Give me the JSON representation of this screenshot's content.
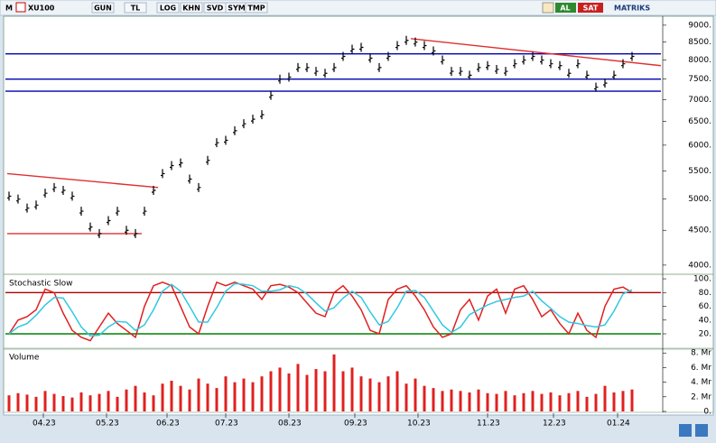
{
  "toolbar": {
    "symbol_prefix": "M",
    "symbol": "XU100",
    "buttons": [
      "GUN",
      "TL",
      "LOG",
      "KHN",
      "SVD",
      "SYM",
      "TMP"
    ],
    "buy": "AL",
    "sell": "SAT",
    "brand": "MATRIKS"
  },
  "chart_data": [
    {
      "type": "stock",
      "color": "#000000",
      "log": true,
      "xlim": [
        -0.4,
        72.2
      ],
      "ylim": [
        3890,
        9220
      ],
      "yticks": [
        {
          "value": 9000,
          "label": "9000."
        },
        {
          "value": 8500,
          "label": "8500."
        },
        {
          "value": 8000,
          "label": "8000."
        },
        {
          "value": 7500,
          "label": "7500."
        },
        {
          "value": 7000,
          "label": "7000."
        },
        {
          "value": 6500,
          "label": "6500."
        },
        {
          "value": 6000,
          "label": "6000."
        },
        {
          "value": 5500,
          "label": "5500."
        },
        {
          "value": 5000,
          "label": "5000."
        },
        {
          "value": 4500,
          "label": "4500."
        },
        {
          "value": 4000,
          "label": "4000."
        }
      ],
      "values": [
        5050,
        5000,
        4850,
        4900,
        5100,
        5200,
        5150,
        5050,
        4800,
        4550,
        4450,
        4650,
        4800,
        4500,
        4450,
        4800,
        5150,
        5450,
        5600,
        5650,
        5350,
        5200,
        5700,
        6050,
        6100,
        6300,
        6450,
        6550,
        6650,
        7100,
        7500,
        7550,
        7800,
        7800,
        7700,
        7650,
        7800,
        8100,
        8300,
        8350,
        8050,
        7800,
        8100,
        8400,
        8550,
        8500,
        8400,
        8250,
        8000,
        7700,
        7700,
        7600,
        7800,
        7850,
        7750,
        7700,
        7900,
        8000,
        8100,
        8000,
        7900,
        7850,
        7650,
        7900,
        7600,
        7300,
        7400,
        7600,
        7900,
        8100
      ],
      "trendlines": [
        {
          "color": "#0000b0",
          "x": [
            -0.4,
            72.2
          ],
          "y": [
            8170,
            8170
          ]
        },
        {
          "color": "#0000b0",
          "x": [
            -0.4,
            72.2
          ],
          "y": [
            7500,
            7500
          ]
        },
        {
          "color": "#0000b0",
          "x": [
            -0.4,
            72.2
          ],
          "y": [
            7200,
            7200
          ]
        },
        {
          "color": "#e03030",
          "x": [
            -0.2,
            16.5
          ],
          "y": [
            5450,
            5200
          ]
        },
        {
          "color": "#e03030",
          "x": [
            -0.2,
            14.7
          ],
          "y": [
            4450,
            4450
          ]
        },
        {
          "color": "#e03030",
          "x": [
            44.5,
            72.2
          ],
          "y": [
            8600,
            7850
          ]
        }
      ]
    },
    {
      "type": "line",
      "title": "Stochastic Slow",
      "xlim": [
        -0.4,
        72.2
      ],
      "ylim": [
        -1,
        104
      ],
      "yticks": [
        {
          "value": 100,
          "label": "100."
        },
        {
          "value": 80,
          "label": "80."
        },
        {
          "value": 60,
          "label": "60."
        },
        {
          "value": 40,
          "label": "40."
        },
        {
          "value": 20,
          "label": "20."
        }
      ],
      "hlines": [
        {
          "value": 80,
          "color": "#b00000"
        },
        {
          "value": 20,
          "color": "#008000"
        }
      ],
      "series": [
        {
          "color": "#e02020",
          "values": [
            20,
            40,
            45,
            55,
            85,
            80,
            50,
            25,
            15,
            10,
            30,
            50,
            35,
            25,
            15,
            60,
            90,
            95,
            90,
            60,
            30,
            20,
            60,
            95,
            90,
            95,
            90,
            85,
            70,
            90,
            92,
            88,
            80,
            65,
            50,
            45,
            80,
            90,
            75,
            55,
            25,
            20,
            70,
            85,
            90,
            75,
            55,
            30,
            15,
            20,
            55,
            70,
            40,
            75,
            85,
            50,
            85,
            90,
            70,
            45,
            55,
            35,
            20,
            50,
            25,
            15,
            60,
            85,
            88,
            80
          ]
        },
        {
          "color": "#30c8e0",
          "values": [
            20,
            30,
            35,
            47,
            62,
            73,
            72,
            52,
            30,
            17,
            18,
            30,
            38,
            37,
            25,
            33,
            55,
            82,
            92,
            82,
            60,
            37,
            37,
            58,
            82,
            93,
            92,
            90,
            82,
            82,
            84,
            90,
            87,
            78,
            65,
            53,
            58,
            72,
            82,
            73,
            52,
            33,
            38,
            58,
            82,
            83,
            73,
            53,
            33,
            22,
            30,
            48,
            55,
            62,
            67,
            70,
            73,
            75,
            82,
            68,
            57,
            45,
            37,
            35,
            32,
            30,
            33,
            53,
            78,
            84
          ]
        }
      ]
    },
    {
      "type": "bar",
      "title": "Volume",
      "color": "#e02020",
      "xlim": [
        -0.4,
        72.2
      ],
      "ylim": [
        0,
        8.4
      ],
      "yticks": [
        {
          "value": 8,
          "label": "8. Mr"
        },
        {
          "value": 6,
          "label": "6. Mr"
        },
        {
          "value": 4,
          "label": "4. Mr"
        },
        {
          "value": 2,
          "label": "2. Mr"
        },
        {
          "value": 0,
          "label": "0."
        }
      ],
      "xticks": [
        {
          "value": 3.8,
          "label": "04.23"
        },
        {
          "value": 10.8,
          "label": "05.23"
        },
        {
          "value": 17.5,
          "label": "06.23"
        },
        {
          "value": 24,
          "label": "07.23"
        },
        {
          "value": 31,
          "label": "08.23"
        },
        {
          "value": 38.3,
          "label": "09.23"
        },
        {
          "value": 45.3,
          "label": "10.23"
        },
        {
          "value": 53,
          "label": "11.23"
        },
        {
          "value": 60.3,
          "label": "12.23"
        },
        {
          "value": 67.4,
          "label": "01.24"
        }
      ],
      "values": [
        2.2,
        2.5,
        2.3,
        2.0,
        2.8,
        2.4,
        2.1,
        1.9,
        2.6,
        2.2,
        2.4,
        2.8,
        2.0,
        3.0,
        3.5,
        2.6,
        2.2,
        3.8,
        4.2,
        3.5,
        3.0,
        4.5,
        3.8,
        3.2,
        4.8,
        4.0,
        4.5,
        4.0,
        4.8,
        5.5,
        6.0,
        5.2,
        6.5,
        5.0,
        5.8,
        5.5,
        7.8,
        5.5,
        6.0,
        4.8,
        4.5,
        4.0,
        4.8,
        5.5,
        3.8,
        4.5,
        3.5,
        3.2,
        2.8,
        3.0,
        2.8,
        2.6,
        3.0,
        2.5,
        2.4,
        2.8,
        2.2,
        2.5,
        2.8,
        2.4,
        2.6,
        2.2,
        2.5,
        2.8,
        2.0,
        2.4,
        3.5,
        2.6,
        2.8,
        3.0
      ]
    }
  ]
}
